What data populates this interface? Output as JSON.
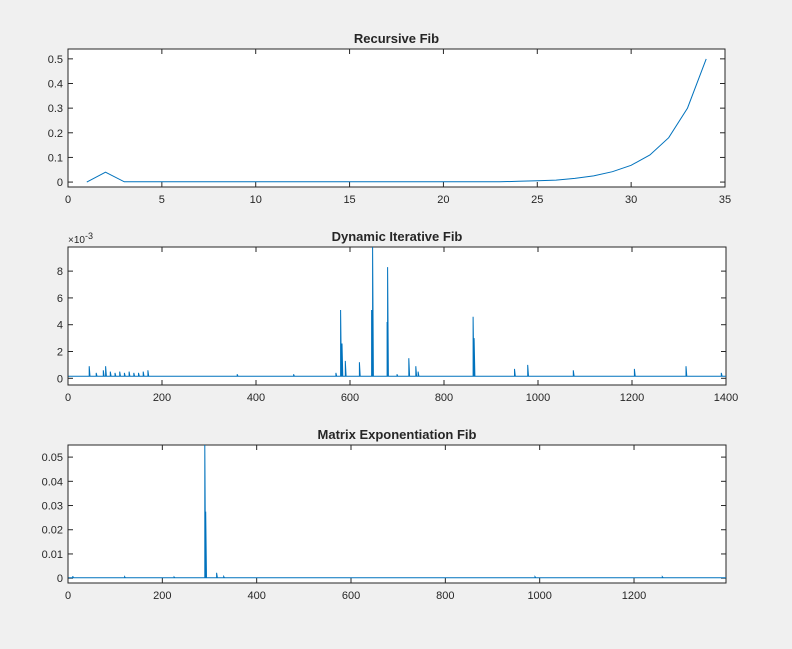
{
  "chart_data": [
    {
      "type": "line",
      "title": "Recursive Fib",
      "xlim": [
        0,
        35
      ],
      "ylim": [
        -0.02,
        0.54
      ],
      "xticks": [
        0,
        5,
        10,
        15,
        20,
        25,
        30,
        35
      ],
      "xtick_labels": [
        "0",
        "5",
        "10",
        "15",
        "20",
        "25",
        "30",
        "35"
      ],
      "yticks": [
        0,
        0.1,
        0.2,
        0.3,
        0.4,
        0.5
      ],
      "ytick_labels": [
        "0",
        "0.1",
        "0.2",
        "0.3",
        "0.4",
        "0.5"
      ],
      "series_color": "#0072bd",
      "x": [
        1,
        2,
        3,
        4,
        5,
        6,
        7,
        8,
        9,
        10,
        11,
        12,
        13,
        14,
        15,
        16,
        17,
        18,
        19,
        20,
        21,
        22,
        23,
        24,
        25,
        26,
        27,
        28,
        29,
        30,
        31,
        32,
        33,
        34
      ],
      "y": [
        0.0,
        0.04,
        0.001,
        0.001,
        0.001,
        0.001,
        0.001,
        0.001,
        0.001,
        0.001,
        0.001,
        0.001,
        0.001,
        0.001,
        0.001,
        0.001,
        0.001,
        0.001,
        0.001,
        0.001,
        0.001,
        0.001,
        0.001,
        0.003,
        0.005,
        0.008,
        0.015,
        0.025,
        0.042,
        0.068,
        0.11,
        0.18,
        0.3,
        0.5
      ]
    },
    {
      "type": "line",
      "title": "Dynamic Iterative Fib",
      "exponent_label": "×10",
      "exponent_power": "-3",
      "xlim": [
        0,
        1400
      ],
      "ylim": [
        -0.5,
        9.8
      ],
      "xticks": [
        0,
        200,
        400,
        600,
        800,
        1000,
        1200,
        1400
      ],
      "xtick_labels": [
        "0",
        "200",
        "400",
        "600",
        "800",
        "1000",
        "1200",
        "1400"
      ],
      "yticks": [
        0,
        2,
        4,
        6,
        8
      ],
      "ytick_labels": [
        "0",
        "2",
        "4",
        "6",
        "8"
      ],
      "series_color": "#0072bd",
      "baseline": 0.15,
      "spikes": [
        [
          45,
          0.9
        ],
        [
          60,
          0.4
        ],
        [
          75,
          0.6
        ],
        [
          80,
          0.9
        ],
        [
          90,
          0.5
        ],
        [
          100,
          0.4
        ],
        [
          110,
          0.5
        ],
        [
          120,
          0.4
        ],
        [
          130,
          0.5
        ],
        [
          140,
          0.4
        ],
        [
          150,
          0.4
        ],
        [
          160,
          0.5
        ],
        [
          170,
          0.6
        ],
        [
          360,
          0.3
        ],
        [
          480,
          0.3
        ],
        [
          570,
          0.4
        ],
        [
          580,
          5.1
        ],
        [
          583,
          2.6
        ],
        [
          590,
          1.3
        ],
        [
          620,
          1.2
        ],
        [
          648,
          9.8
        ],
        [
          646,
          5.1
        ],
        [
          680,
          8.3
        ],
        [
          679,
          4.2
        ],
        [
          700,
          0.3
        ],
        [
          725,
          1.5
        ],
        [
          740,
          0.9
        ],
        [
          745,
          0.5
        ],
        [
          862,
          4.6
        ],
        [
          864,
          3.0
        ],
        [
          950,
          0.7
        ],
        [
          978,
          1.0
        ],
        [
          1075,
          0.6
        ],
        [
          1205,
          0.7
        ],
        [
          1315,
          0.9
        ],
        [
          1390,
          0.4
        ]
      ]
    },
    {
      "type": "line",
      "title": "Matrix Exponentiation Fib",
      "xlim": [
        0,
        1395
      ],
      "ylim": [
        -0.002,
        0.055
      ],
      "xticks": [
        0,
        200,
        400,
        600,
        800,
        1000,
        1200
      ],
      "xtick_labels": [
        "0",
        "200",
        "400",
        "600",
        "800",
        "1000",
        "1200"
      ],
      "yticks": [
        0,
        0.01,
        0.02,
        0.03,
        0.04,
        0.05
      ],
      "ytick_labels": [
        "0",
        "0.01",
        "0.02",
        "0.03",
        "0.04",
        "0.05"
      ],
      "series_color": "#0072bd",
      "baseline": 0.0002,
      "spikes": [
        [
          10,
          0.0008
        ],
        [
          120,
          0.0006
        ],
        [
          225,
          0.0005
        ],
        [
          290,
          0.055
        ],
        [
          292,
          0.0275
        ],
        [
          315,
          0.0022
        ],
        [
          330,
          0.0007
        ],
        [
          990,
          0.0006
        ],
        [
          1260,
          0.0006
        ]
      ]
    }
  ]
}
